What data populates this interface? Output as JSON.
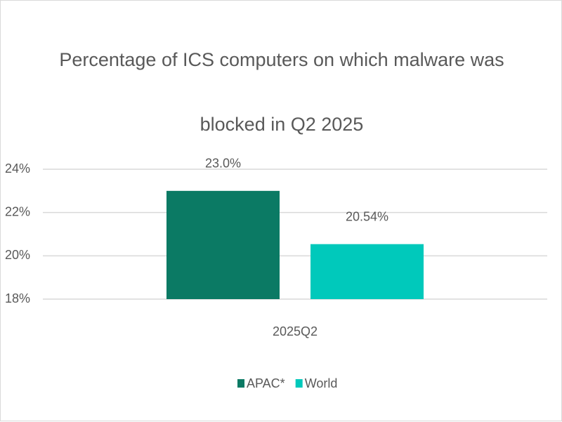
{
  "chart_data": {
    "type": "bar",
    "title": "Percentage of ICS computers on which malware was blocked in Q2 2025",
    "categories": [
      "2025Q2"
    ],
    "series": [
      {
        "name": "APAC*",
        "color": "#0b7a64",
        "values": [
          23.0
        ],
        "value_labels": [
          "23.0%"
        ]
      },
      {
        "name": "World",
        "color": "#00c9bb",
        "values": [
          20.54
        ],
        "value_labels": [
          "20.54%"
        ]
      }
    ],
    "ylim": [
      18,
      24
    ],
    "yticks": [
      {
        "value": 18,
        "label": "18%"
      },
      {
        "value": 20,
        "label": "20%"
      },
      {
        "value": 22,
        "label": "22%"
      },
      {
        "value": 24,
        "label": "24%"
      }
    ],
    "grid": true,
    "legend": "bottom"
  }
}
